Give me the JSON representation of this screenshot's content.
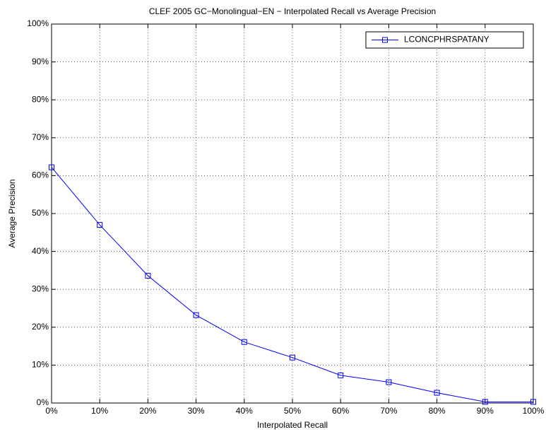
{
  "chart_data": {
    "type": "line",
    "title": "CLEF 2005 GC−Monolingual−EN − Interpolated Recall vs Average Precision",
    "x_label": "Interpolated Recall",
    "y_label": "Average Precision",
    "x": [
      0,
      10,
      20,
      30,
      40,
      50,
      60,
      70,
      80,
      90,
      100
    ],
    "series": [
      {
        "name": "LCONCPHRSPATANY",
        "color": "#0000ff",
        "values": [
          62.2,
          47,
          33.6,
          23.2,
          16.1,
          12,
          7.3,
          5.5,
          2.7,
          0.3,
          0.3
        ]
      }
    ],
    "xlim": [
      0,
      100
    ],
    "ylim": [
      0,
      100
    ],
    "xticks": [
      {
        "value": 0,
        "label": "0%"
      },
      {
        "value": 10,
        "label": "10%"
      },
      {
        "value": 20,
        "label": "20%"
      },
      {
        "value": 30,
        "label": "30%"
      },
      {
        "value": 40,
        "label": "40%"
      },
      {
        "value": 50,
        "label": "50%"
      },
      {
        "value": 60,
        "label": "60%"
      },
      {
        "value": 70,
        "label": "70%"
      },
      {
        "value": 80,
        "label": "80%"
      },
      {
        "value": 90,
        "label": "90%"
      },
      {
        "value": 100,
        "label": "100%"
      }
    ],
    "yticks": [
      {
        "value": 0,
        "label": "0%"
      },
      {
        "value": 10,
        "label": "10%"
      },
      {
        "value": 20,
        "label": "20%"
      },
      {
        "value": 30,
        "label": "30%"
      },
      {
        "value": 40,
        "label": "40%"
      },
      {
        "value": 50,
        "label": "50%"
      },
      {
        "value": 60,
        "label": "60%"
      },
      {
        "value": 70,
        "label": "70%"
      },
      {
        "value": 80,
        "label": "80%"
      },
      {
        "value": 90,
        "label": "90%"
      },
      {
        "value": 100,
        "label": "100%"
      }
    ],
    "grid": true,
    "legend": "northeast"
  }
}
